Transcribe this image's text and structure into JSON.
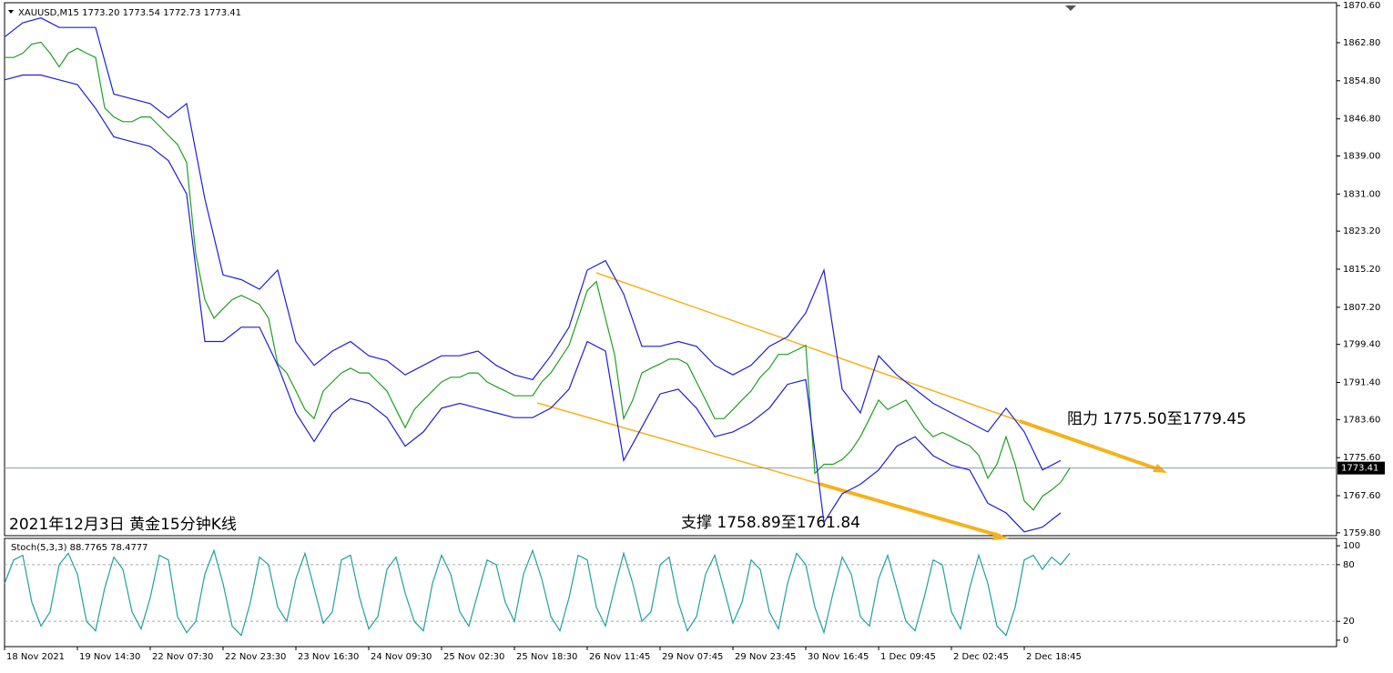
{
  "chart_data": [
    {
      "type": "line",
      "title": "XAUUSD,M15  1773.20 1773.54 1772.73 1773.41",
      "annotations": [
        "阻力 1775.50至1779.45",
        "支撑 1758.89至1761.84",
        "2021年12月3日 黄金15分钟K线"
      ],
      "xlim": [
        0,
        146.3
      ],
      "ylim": [
        1759.2,
        1871.2
      ],
      "yticks": [
        {
          "value": 1870.6,
          "label": "1870.60"
        },
        {
          "value": 1862.8,
          "label": "1862.80"
        },
        {
          "value": 1854.8,
          "label": "1854.80"
        },
        {
          "value": 1846.8,
          "label": "1846.80"
        },
        {
          "value": 1839,
          "label": "1839.00"
        },
        {
          "value": 1831,
          "label": "1831.00"
        },
        {
          "value": 1823.2,
          "label": "1823.20"
        },
        {
          "value": 1815.2,
          "label": "1815.20"
        },
        {
          "value": 1807.2,
          "label": "1807.20"
        },
        {
          "value": 1799.4,
          "label": "1799.40"
        },
        {
          "value": 1791.4,
          "label": "1791.40"
        },
        {
          "value": 1783.6,
          "label": "1783.60"
        },
        {
          "value": 1775.6,
          "label": "1775.60"
        },
        {
          "value": 1767.6,
          "label": "1767.60"
        },
        {
          "value": 1759.8,
          "label": "1759.80"
        }
      ],
      "current_price": 1773.41,
      "series": [
        {
          "color": "#1fa01f",
          "values": [
            1859.7,
            1859.7,
            1860.6,
            1862.5,
            1862.9,
            1860.6,
            1857.7,
            1860.6,
            1861.6,
            1860.6,
            1859.7,
            1849.1,
            1847.2,
            1846.2,
            1846.2,
            1847.2,
            1847.2,
            1845.3,
            1843.3,
            1841.4,
            1837.6,
            1818.4,
            1808.8,
            1804.9,
            1806.9,
            1808.8,
            1809.7,
            1808.8,
            1807.8,
            1804.9,
            1795.3,
            1793.4,
            1789.6,
            1785.7,
            1783.8,
            1789.6,
            1791.5,
            1793.4,
            1794.4,
            1793.4,
            1793.4,
            1791.5,
            1789.6,
            1785.7,
            1781.9,
            1785.7,
            1787.7,
            1789.6,
            1791.5,
            1792.5,
            1792.5,
            1793.4,
            1793.4,
            1791.5,
            1790.5,
            1789.6,
            1788.6,
            1788.6,
            1788.6,
            1791.5,
            1793.4,
            1796.3,
            1799.2,
            1804.9,
            1810.7,
            1812.6,
            1804.9,
            1797.3,
            1783.8,
            1787.7,
            1793.4,
            1794.4,
            1795.3,
            1796.3,
            1796.3,
            1795.3,
            1791.5,
            1787.7,
            1783.8,
            1783.8,
            1785.7,
            1787.7,
            1789.6,
            1792.5,
            1794.4,
            1797.3,
            1797.3,
            1798.2,
            1799.2,
            1772.3,
            1774.2,
            1774.2,
            1775.2,
            1777.1,
            1780.0,
            1783.8,
            1787.7,
            1785.7,
            1786.7,
            1787.7,
            1784.8,
            1781.9,
            1780.0,
            1780.9,
            1780.0,
            1779.0,
            1778.1,
            1776.1,
            1771.3,
            1774.2,
            1780.0,
            1774.2,
            1766.5,
            1764.6,
            1767.5,
            1768.8,
            1770.4,
            1773.4
          ]
        },
        {
          "color": "#1f1fd6",
          "x": [
            0,
            2,
            4,
            6,
            8,
            10,
            12,
            14,
            16,
            18,
            20,
            22,
            24,
            26,
            28,
            30,
            32,
            34,
            36,
            38,
            40,
            42,
            44,
            46,
            48,
            50,
            52,
            54,
            56,
            58,
            60,
            62,
            64,
            66,
            68,
            70,
            72,
            74,
            76,
            78,
            80,
            82,
            84,
            86,
            88,
            90,
            92,
            94,
            96,
            98,
            100,
            102,
            104,
            106,
            108,
            110,
            112,
            114,
            116
          ],
          "values": [
            1864,
            1867,
            1868,
            1866,
            1866,
            1866,
            1852,
            1851,
            1850,
            1847,
            1850,
            1830,
            1814,
            1813,
            1811,
            1815,
            1800,
            1795,
            1798,
            1800,
            1797,
            1796,
            1793,
            1795,
            1797,
            1797,
            1798,
            1795,
            1793,
            1792,
            1797,
            1803,
            1815,
            1817,
            1810,
            1799,
            1799,
            1800,
            1799,
            1795,
            1793,
            1795,
            1799,
            1801,
            1806,
            1815,
            1790,
            1785,
            1797,
            1793,
            1790,
            1787,
            1785,
            1783,
            1781,
            1786,
            1781,
            1773,
            1775
          ]
        },
        {
          "color": "#1f1fd6",
          "x": [
            0,
            2,
            4,
            6,
            8,
            10,
            12,
            14,
            16,
            18,
            20,
            22,
            24,
            26,
            28,
            30,
            32,
            34,
            36,
            38,
            40,
            42,
            44,
            46,
            48,
            50,
            52,
            54,
            56,
            58,
            60,
            62,
            64,
            66,
            68,
            70,
            72,
            74,
            76,
            78,
            80,
            82,
            84,
            86,
            88,
            90,
            92,
            94,
            96,
            98,
            100,
            102,
            104,
            106,
            108,
            110,
            112,
            114,
            116
          ],
          "values": [
            1855,
            1856,
            1856,
            1855,
            1854,
            1849,
            1843,
            1842,
            1841,
            1838,
            1831,
            1800,
            1800,
            1803,
            1803,
            1795,
            1785,
            1779,
            1785,
            1788,
            1787,
            1784,
            1778,
            1781,
            1786,
            1787,
            1786,
            1785,
            1784,
            1784,
            1786,
            1790,
            1800,
            1798,
            1775,
            1782,
            1789,
            1790,
            1786,
            1780,
            1781,
            1783,
            1786,
            1791,
            1792,
            1762,
            1768,
            1770,
            1773,
            1778,
            1780,
            1776,
            1774,
            1773,
            1766,
            1764,
            1760,
            1761,
            1764
          ]
        }
      ]
    },
    {
      "type": "line",
      "title": "Stoch(5,3,3) 88.7765 78.4777",
      "xlim": [
        0,
        146.3
      ],
      "ylim": [
        -6.8,
        107.8
      ],
      "yticks": [
        100,
        80,
        20,
        0
      ],
      "levels": [
        80,
        20
      ],
      "xticks": [
        {
          "value": 0,
          "label": "18 Nov 2021"
        },
        {
          "value": 8,
          "label": "19 Nov 14:30"
        },
        {
          "value": 16,
          "label": "22 Nov 07:30"
        },
        {
          "value": 24,
          "label": "22 Nov 23:30"
        },
        {
          "value": 32,
          "label": "23 Nov 16:30"
        },
        {
          "value": 40,
          "label": "24 Nov 09:30"
        },
        {
          "value": 48,
          "label": "25 Nov 02:30"
        },
        {
          "value": 56,
          "label": "25 Nov 18:30"
        },
        {
          "value": 64,
          "label": "26 Nov 11:45"
        },
        {
          "value": 72,
          "label": "29 Nov 07:45"
        },
        {
          "value": 80,
          "label": "29 Nov 23:45"
        },
        {
          "value": 88,
          "label": "30 Nov 16:45"
        },
        {
          "value": 96,
          "label": "1 Dec 09:45"
        },
        {
          "value": 104,
          "label": "2 Dec 02:45"
        },
        {
          "value": 112,
          "label": "2 Dec 18:45"
        }
      ],
      "series": [
        {
          "color": "#20a0a0",
          "values": [
            60,
            85,
            90,
            40,
            15,
            30,
            80,
            92,
            70,
            20,
            10,
            55,
            88,
            75,
            30,
            12,
            45,
            90,
            85,
            25,
            8,
            20,
            70,
            95,
            60,
            15,
            5,
            40,
            88,
            80,
            35,
            20,
            65,
            92,
            55,
            18,
            30,
            85,
            90,
            45,
            12,
            25,
            75,
            88,
            50,
            20,
            10,
            60,
            90,
            70,
            30,
            15,
            50,
            85,
            80,
            40,
            20,
            70,
            95,
            65,
            25,
            10,
            45,
            90,
            85,
            35,
            15,
            55,
            92,
            60,
            20,
            30,
            80,
            88,
            40,
            10,
            25,
            70,
            90,
            55,
            18,
            40,
            85,
            75,
            30,
            12,
            60,
            92,
            80,
            35,
            8,
            50,
            88,
            70,
            25,
            15,
            65,
            90,
            55,
            20,
            10,
            45,
            85,
            80,
            30,
            12,
            55,
            90,
            60,
            15,
            5,
            35,
            85,
            90,
            75,
            88,
            80,
            92
          ]
        }
      ]
    }
  ]
}
